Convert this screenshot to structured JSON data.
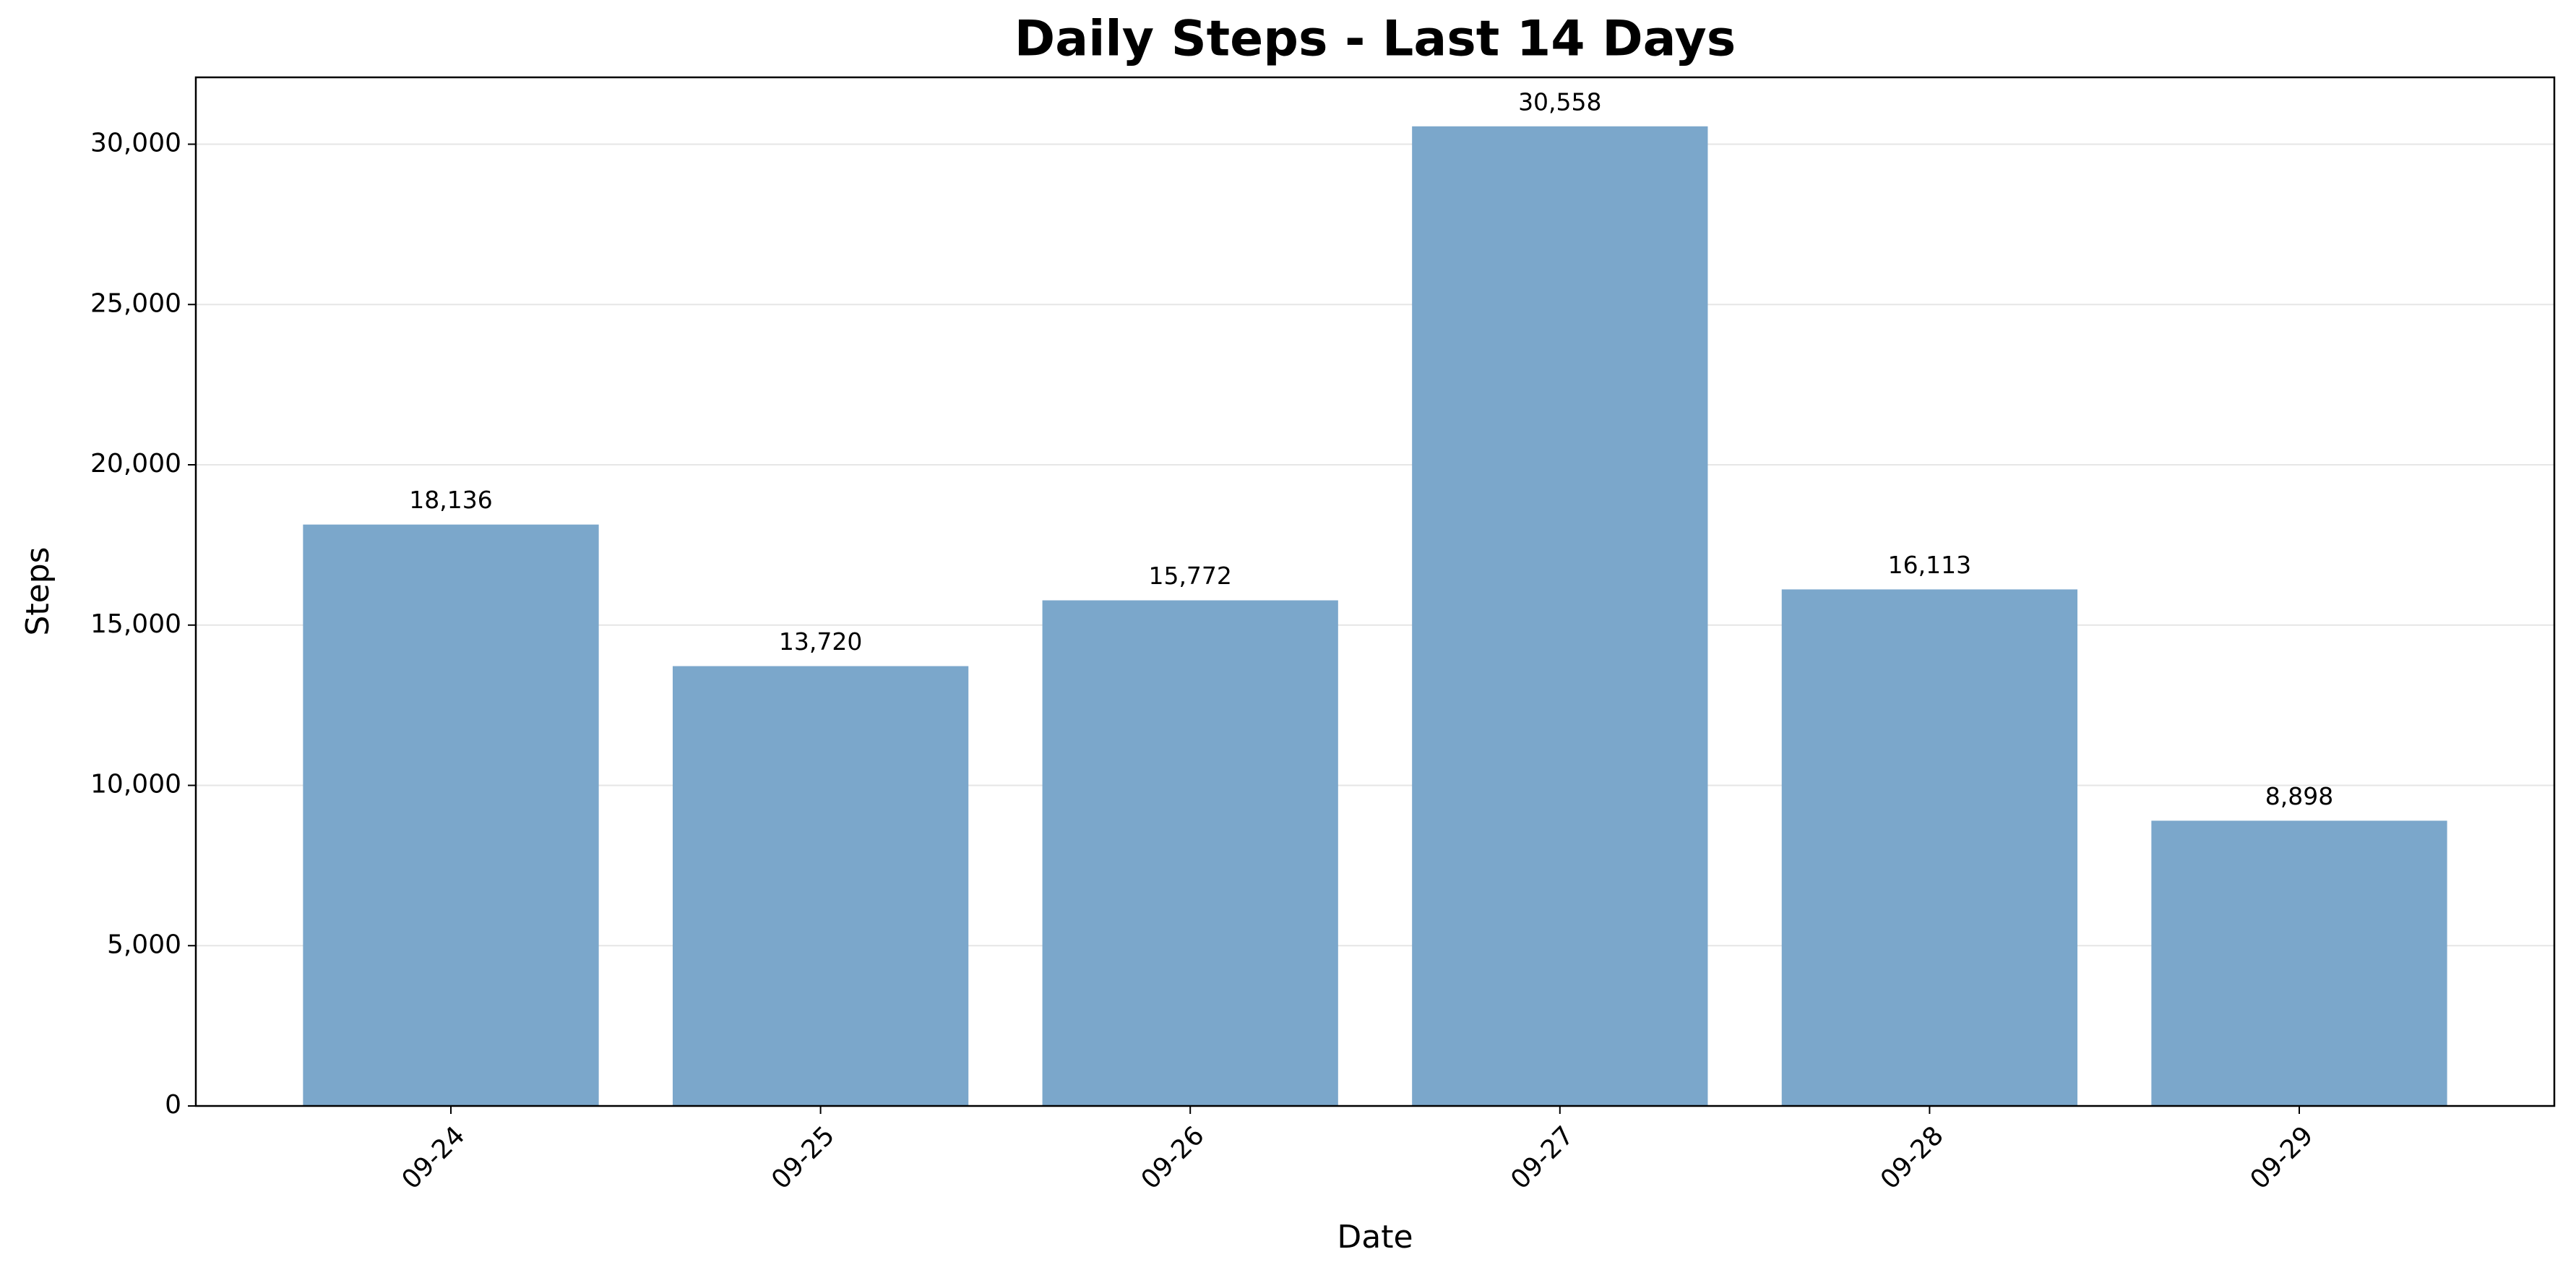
{
  "chart_data": {
    "type": "bar",
    "title": "Daily Steps - Last 14 Days",
    "x_label": "Date",
    "y_label": "Steps",
    "categories": [
      "09-24",
      "09-25",
      "09-26",
      "09-27",
      "09-28",
      "09-29"
    ],
    "values": [
      18136,
      13720,
      15772,
      30558,
      16113,
      8898
    ],
    "value_labels": [
      "18,136",
      "13,720",
      "15,772",
      "30,558",
      "16,113",
      "8,898"
    ],
    "color": "#7ba7cb",
    "ylim": [
      0,
      32086
    ],
    "yticks": [
      0,
      {
        "value": 5000,
        "label": "5,000"
      },
      {
        "value": 10000,
        "label": "10,000"
      },
      {
        "value": 15000,
        "label": "15,000"
      },
      {
        "value": 20000,
        "label": "20,000"
      },
      {
        "value": 25000,
        "label": "25,000"
      },
      {
        "value": 30000,
        "label": "30,000"
      }
    ],
    "grid": true
  }
}
